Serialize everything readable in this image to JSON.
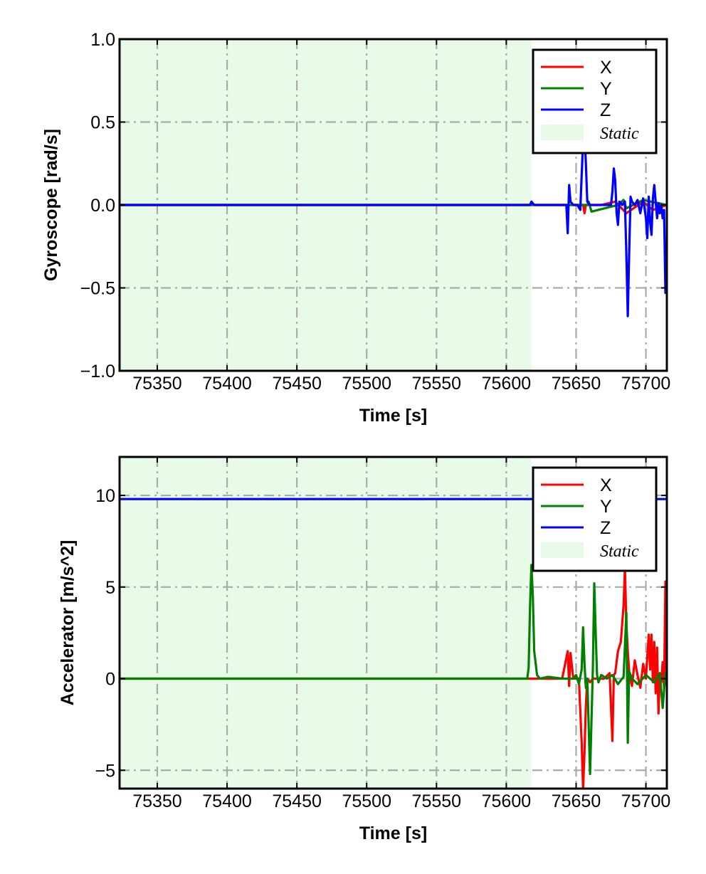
{
  "chart_data": [
    {
      "type": "line",
      "xlabel": "Time [s]",
      "ylabel": "Gyroscope [rad/s]",
      "xlim": [
        75323,
        75715
      ],
      "ylim": [
        -1.0,
        1.0
      ],
      "xticks": [
        75350,
        75400,
        75450,
        75500,
        75550,
        75600,
        75650,
        75700
      ],
      "xtick_labels": [
        "75350",
        "75400",
        "75450",
        "75500",
        "75550",
        "75600",
        "75650",
        "75700"
      ],
      "yticks": [
        -1.0,
        -0.5,
        0.0,
        0.5,
        1.0
      ],
      "ytick_labels": [
        "−1.0",
        "−0.5",
        "0.0",
        "0.5",
        "1.0"
      ],
      "grid": true,
      "legend_position": "top-right",
      "static_region": {
        "label": "Static",
        "x": [
          75323,
          75618
        ],
        "color": "#e8fbe8"
      },
      "series": [
        {
          "name": "X",
          "color": "#ff0000",
          "x": [
            75323,
            75617,
            75640,
            75655,
            75656,
            75657,
            75668,
            75678,
            75686,
            75698,
            75705,
            75715
          ],
          "y": [
            0,
            0,
            0,
            0,
            -0.05,
            0,
            0,
            0.02,
            -0.05,
            0.02,
            -0.03,
            0
          ]
        },
        {
          "name": "Y",
          "color": "#008000",
          "x": [
            75323,
            75617,
            75658,
            75659,
            75661,
            75680,
            75684,
            75686,
            75698,
            75715
          ],
          "y": [
            0,
            0,
            0,
            0.02,
            -0.04,
            0,
            0.03,
            -0.02,
            0.03,
            0
          ]
        },
        {
          "name": "Z",
          "color": "#0000ff",
          "x": [
            75323,
            75617,
            75618,
            75620,
            75630,
            75643,
            75644,
            75645,
            75646,
            75648,
            75651,
            75653,
            75654,
            75655,
            75656,
            75657,
            75658,
            75660,
            75662,
            75670,
            75675,
            75676,
            75677,
            75678,
            75679,
            75680,
            75681,
            75683,
            75685,
            75686,
            75687,
            75688,
            75689,
            75690,
            75692,
            75694,
            75696,
            75698,
            75700,
            75701,
            75702,
            75703,
            75704,
            75705,
            75706,
            75707,
            75708,
            75709,
            75710,
            75711,
            75712,
            75713,
            75714,
            75715
          ],
          "y": [
            0,
            0,
            0.02,
            0,
            0,
            0,
            -0.17,
            0.12,
            0.02,
            0,
            0,
            -0.03,
            0.18,
            0.38,
            0.45,
            0.25,
            0.02,
            0,
            0,
            0,
            0,
            0.08,
            0.22,
            0.15,
            -0.05,
            -0.12,
            0.02,
            0,
            0.02,
            -0.3,
            -0.67,
            -0.3,
            0.05,
            0.02,
            0,
            0.03,
            -0.05,
            0.04,
            -0.08,
            -0.2,
            0.05,
            -0.1,
            -0.18,
            0.04,
            0.12,
            0.02,
            -0.08,
            0.01,
            -0.05,
            0,
            -0.08,
            -0.03,
            -0.53,
            -0.5
          ]
        }
      ]
    },
    {
      "type": "line",
      "xlabel": "Time [s]",
      "ylabel": "Accelerator [m/s^2]",
      "xlim": [
        75323,
        75715
      ],
      "ylim": [
        -6.0,
        12.1
      ],
      "xticks": [
        75350,
        75400,
        75450,
        75500,
        75550,
        75600,
        75650,
        75700
      ],
      "xtick_labels": [
        "75350",
        "75400",
        "75450",
        "75500",
        "75550",
        "75600",
        "75650",
        "75700"
      ],
      "yticks": [
        -5,
        0,
        5,
        10
      ],
      "ytick_labels": [
        "−5",
        "0",
        "5",
        "10"
      ],
      "grid": true,
      "legend_position": "top-right",
      "static_region": {
        "label": "Static",
        "x": [
          75323,
          75618
        ],
        "color": "#e8fbe8"
      },
      "series": [
        {
          "name": "X",
          "color": "#ff0000",
          "x": [
            75323,
            75617,
            75630,
            75640,
            75644,
            75645,
            75646,
            75648,
            75652,
            75654,
            75655,
            75656,
            75657,
            75658,
            75660,
            75662,
            75666,
            75670,
            75674,
            75676,
            75677,
            75678,
            75680,
            75682,
            75684,
            75685,
            75686,
            75687,
            75688,
            75690,
            75692,
            75694,
            75696,
            75698,
            75700,
            75702,
            75703,
            75704,
            75705,
            75706,
            75707,
            75708,
            75709,
            75710,
            75711,
            75712,
            75713,
            75714,
            75715
          ],
          "y": [
            0,
            0,
            0,
            0,
            1.5,
            -0.4,
            1.4,
            0,
            0,
            -3.5,
            -6,
            -4,
            -1.5,
            0,
            -0.2,
            0,
            0,
            0,
            0.3,
            -3.4,
            0.2,
            0.3,
            1.5,
            2.0,
            4.0,
            6.0,
            3.0,
            1.5,
            0.4,
            -0.4,
            1.0,
            0.2,
            -0.5,
            0.8,
            0,
            2.4,
            0.5,
            2.4,
            -0.2,
            2.0,
            -0.8,
            1.7,
            -1.9,
            0.3,
            -0.2,
            0.9,
            -0.5,
            5.3,
            -0.4
          ]
        },
        {
          "name": "Y",
          "color": "#008000",
          "x": [
            75323,
            75615,
            75616,
            75617,
            75618,
            75619,
            75620,
            75622,
            75624,
            75630,
            75640,
            75648,
            75650,
            75652,
            75654,
            75655,
            75656,
            75657,
            75658,
            75660,
            75662,
            75663,
            75664,
            75665,
            75666,
            75668,
            75672,
            75676,
            75680,
            75684,
            75686,
            75687,
            75688,
            75690,
            75694,
            75700,
            75706,
            75710,
            75712,
            75714,
            75715
          ],
          "y": [
            0,
            0,
            0.6,
            4.0,
            6.2,
            4.5,
            1.5,
            0.2,
            0,
            0.1,
            0,
            0,
            0.2,
            -0.3,
            0.5,
            2.8,
            0.8,
            -0.5,
            0,
            -5.2,
            0.5,
            5.2,
            2.5,
            0.2,
            -0.2,
            0.2,
            0,
            0.2,
            -0.3,
            0.1,
            3.6,
            -3.5,
            0.4,
            0,
            -0.3,
            0.2,
            -0.2,
            0.3,
            -1.6,
            0.3,
            0
          ]
        },
        {
          "name": "Z",
          "color": "#0000ff",
          "x": [
            75323,
            75617,
            75640,
            75660,
            75680,
            75700,
            75715
          ],
          "y": [
            9.8,
            9.8,
            9.8,
            9.8,
            9.8,
            9.8,
            9.8
          ]
        }
      ]
    }
  ]
}
